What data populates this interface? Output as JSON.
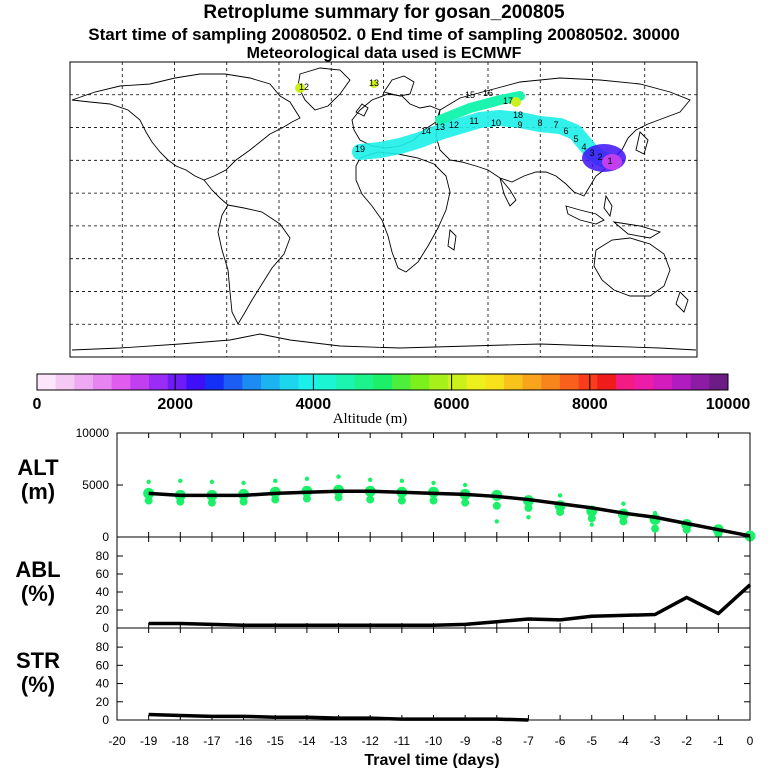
{
  "header": {
    "title": "Retroplume summary for gosan_200805",
    "sampling": "Start time of sampling 20080502.      0     End time of sampling 20080502. 30000",
    "met": "Meteorological data used is ECMWF"
  },
  "map": {
    "plume_labels": [
      "13",
      "12",
      "15",
      "16",
      "17",
      "18",
      "19",
      "14",
      "13",
      "12",
      "11",
      "10",
      "9",
      "8",
      "7",
      "6",
      "5",
      "4",
      "3",
      "2",
      "1"
    ]
  },
  "colorbar": {
    "label": "Altitude (m)",
    "ticks": [
      "0",
      "2000",
      "4000",
      "6000",
      "8000",
      "10000"
    ],
    "colors": [
      "#fbe6fb",
      "#f4c9f4",
      "#edaaf2",
      "#e684f0",
      "#df5cef",
      "#c23ff0",
      "#9a2cf5",
      "#6d1cf7",
      "#3f10f7",
      "#1430f6",
      "#1c5ef4",
      "#1c8cf2",
      "#1cb4f0",
      "#1cd6ee",
      "#1cefe9",
      "#1cf5d4",
      "#1cf5b0",
      "#1cf38c",
      "#1cf068",
      "#4cf03c",
      "#7cf01c",
      "#a8f01c",
      "#ccf01c",
      "#ecf01c",
      "#f8e21c",
      "#f8c41c",
      "#f8a41c",
      "#f8841c",
      "#f8601c",
      "#f83c1c",
      "#f01c1c",
      "#f41c84",
      "#ec1ca8",
      "#d41cbc",
      "#b01cc0",
      "#8c1ca4",
      "#6c1c84"
    ]
  },
  "chart_data": [
    {
      "type": "line",
      "name": "ALT",
      "ylabel": "ALT (m)",
      "ylabel_line1": "ALT",
      "ylabel_line2": "(m)",
      "ylim": [
        0,
        10000
      ],
      "yticks": [
        "0",
        "5000",
        "10000"
      ],
      "x": [
        -19,
        -18,
        -17,
        -16,
        -15,
        -14,
        -13,
        -12,
        -11,
        -10,
        -9,
        -8,
        -7,
        -6,
        -5,
        -4,
        -3,
        -2,
        -1,
        0
      ],
      "values": [
        4200,
        4000,
        4000,
        4000,
        4200,
        4300,
        4400,
        4400,
        4300,
        4200,
        4100,
        3900,
        3600,
        3200,
        2800,
        2300,
        1900,
        1300,
        700,
        100
      ],
      "clusters": [
        {
          "x": -19,
          "y": [
            4200,
            3500,
            5300
          ]
        },
        {
          "x": -18,
          "y": [
            4000,
            3400,
            5400
          ]
        },
        {
          "x": -17,
          "y": [
            4000,
            3300,
            5300
          ]
        },
        {
          "x": -16,
          "y": [
            4100,
            3400,
            5200
          ]
        },
        {
          "x": -15,
          "y": [
            4300,
            3600,
            5400
          ]
        },
        {
          "x": -14,
          "y": [
            4400,
            3700,
            5600
          ]
        },
        {
          "x": -13,
          "y": [
            4500,
            3800,
            5800
          ]
        },
        {
          "x": -12,
          "y": [
            4400,
            3600,
            5500
          ]
        },
        {
          "x": -11,
          "y": [
            4300,
            3500,
            5400
          ]
        },
        {
          "x": -10,
          "y": [
            4300,
            3500,
            5200
          ]
        },
        {
          "x": -9,
          "y": [
            4100,
            3300,
            5000
          ]
        },
        {
          "x": -8,
          "y": [
            4000,
            3000,
            1500
          ]
        },
        {
          "x": -7,
          "y": [
            3500,
            2800,
            1900
          ]
        },
        {
          "x": -6,
          "y": [
            3000,
            2400,
            4000
          ]
        },
        {
          "x": -5,
          "y": [
            2500,
            1800,
            1200
          ]
        },
        {
          "x": -4,
          "y": [
            2200,
            1500,
            3200
          ]
        },
        {
          "x": -3,
          "y": [
            1700,
            800,
            2300
          ]
        },
        {
          "x": -2,
          "y": [
            1200,
            700
          ]
        },
        {
          "x": -1,
          "y": [
            700,
            300
          ]
        },
        {
          "x": 0,
          "y": [
            100
          ]
        }
      ]
    },
    {
      "type": "line",
      "name": "ABL",
      "ylabel": "ABL (%)",
      "ylabel_line1": "ABL",
      "ylabel_line2": "(%)",
      "ylim": [
        0,
        90
      ],
      "yticks": [
        "0",
        "20",
        "40",
        "60",
        "80"
      ],
      "x": [
        -19,
        -18,
        -17,
        -16,
        -15,
        -14,
        -13,
        -12,
        -11,
        -10,
        -9,
        -8,
        -7,
        -6,
        -5,
        -4,
        -3,
        -2,
        -1,
        0
      ],
      "values": [
        5,
        5,
        4,
        3,
        3,
        3,
        3,
        3,
        3,
        3,
        4,
        7,
        10,
        9,
        13,
        14,
        15,
        34,
        16,
        48
      ]
    },
    {
      "type": "line",
      "name": "STR",
      "ylabel": "STR (%)",
      "ylabel_line1": "STR",
      "ylabel_line2": "(%)",
      "ylim": [
        0,
        90
      ],
      "yticks": [
        "0",
        "20",
        "40",
        "60",
        "80"
      ],
      "x": [
        -19,
        -18,
        -17,
        -16,
        -15,
        -14,
        -13,
        -12,
        -11,
        -10,
        -9,
        -8,
        -7
      ],
      "values": [
        6,
        5,
        4,
        4,
        3,
        3,
        2,
        2,
        1,
        1,
        1,
        1,
        0
      ]
    }
  ],
  "xaxis": {
    "label": "Travel time (days)",
    "ticks": [
      "-20",
      "-19",
      "-18",
      "-17",
      "-16",
      "-15",
      "-14",
      "-13",
      "-12",
      "-11",
      "-10",
      "-9",
      "-8",
      "-7",
      "-6",
      "-5",
      "-4",
      "-3",
      "-2",
      "-1",
      "0"
    ]
  }
}
